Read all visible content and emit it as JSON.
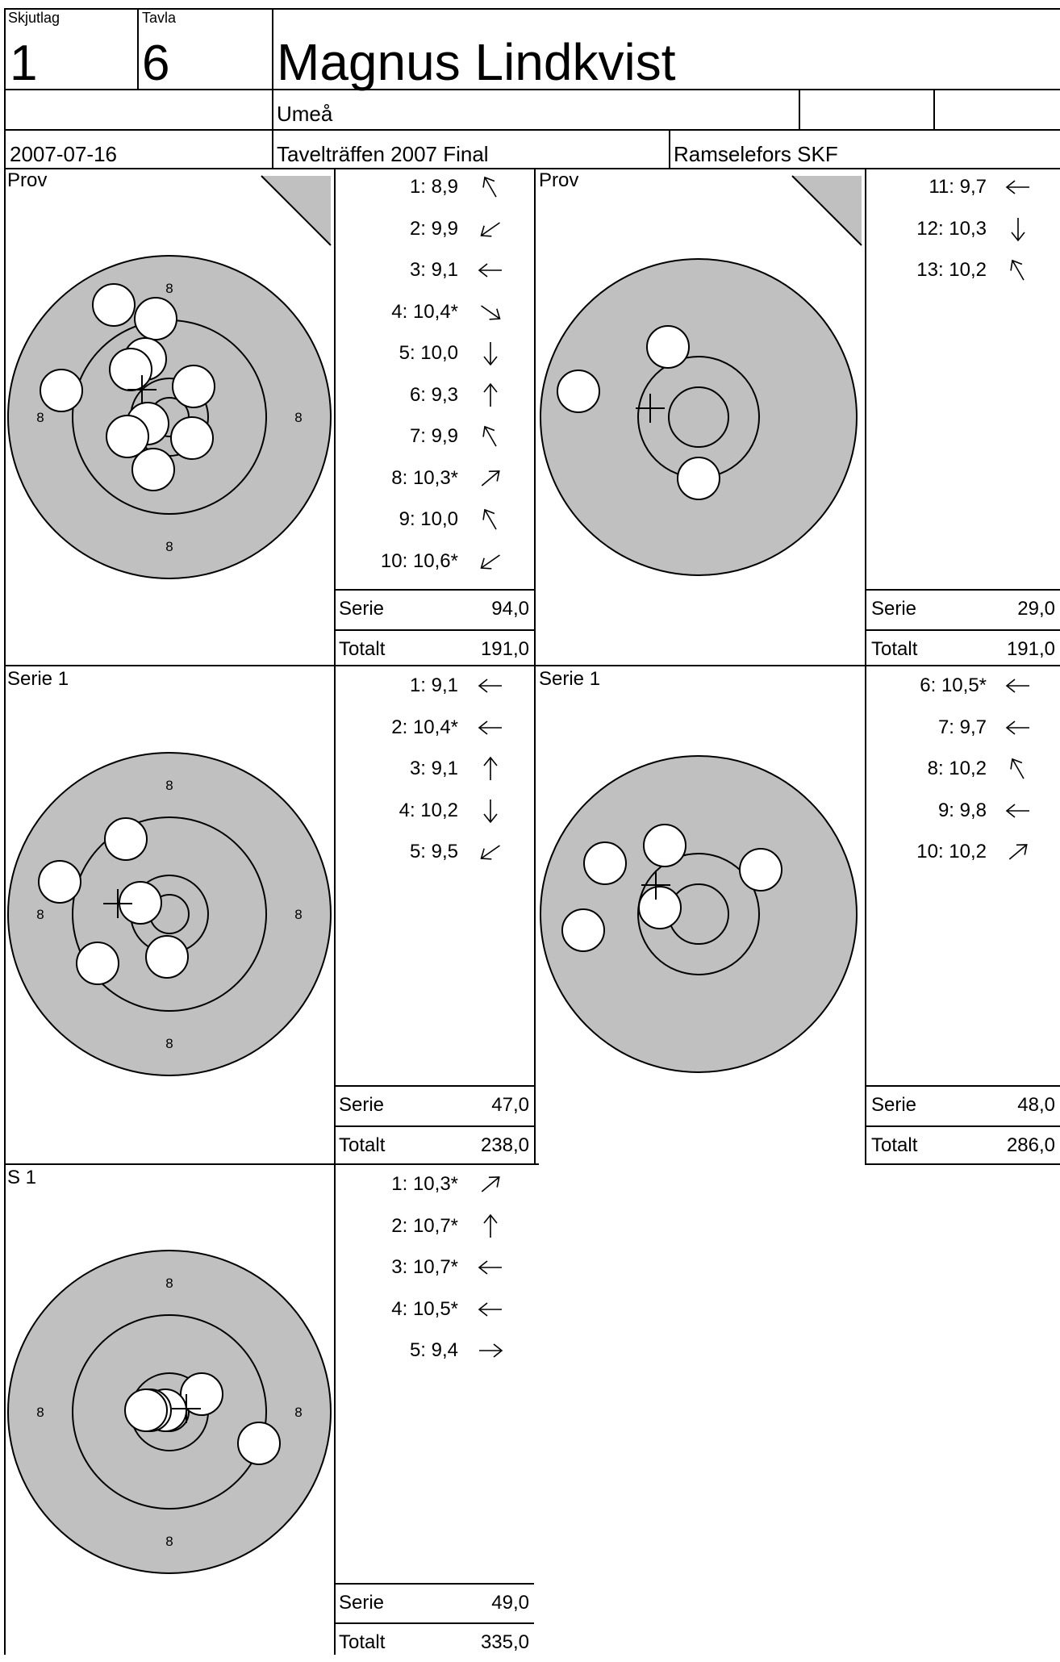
{
  "header": {
    "skjutlag_label": "Skjutlag",
    "skjutlag": "1",
    "tavla_label": "Tavla",
    "tavla": "6",
    "name": "Magnus Lindkvist",
    "city": "Umeå",
    "date": "2007-07-16",
    "competition": "Tavelträffen 2007 Final",
    "club": "Ramselefors SKF"
  },
  "colors": {
    "target_fill": "#c0c0c0",
    "ink": "#000000",
    "paper": "#ffffff"
  },
  "ring_label": "8",
  "summary_labels": {
    "serie": "Serie",
    "totalt": "Totalt"
  },
  "panels": [
    {
      "title": "Prov",
      "corner_flag": true,
      "shots": [
        {
          "text": "1:  8,9",
          "arrow": "up-left"
        },
        {
          "text": "2:  9,9",
          "arrow": "down-left"
        },
        {
          "text": "3:  9,1",
          "arrow": "left"
        },
        {
          "text": "4: 10,4*",
          "arrow": "down-right"
        },
        {
          "text": "5: 10,0",
          "arrow": "down"
        },
        {
          "text": "6:  9,3",
          "arrow": "up"
        },
        {
          "text": "7:  9,9",
          "arrow": "up-left"
        },
        {
          "text": "8: 10,3*",
          "arrow": "up-right"
        },
        {
          "text": "9: 10,0",
          "arrow": "up-left"
        },
        {
          "text": "10: 10,6*",
          "arrow": "down-left"
        }
      ],
      "serie": "94,0",
      "totalt": "191,0"
    },
    {
      "title": "Prov",
      "corner_flag": true,
      "shots": [
        {
          "text": "11:  9,7",
          "arrow": "left"
        },
        {
          "text": "12: 10,3",
          "arrow": "down"
        },
        {
          "text": "13: 10,2",
          "arrow": "up-left"
        }
      ],
      "serie": "29,0",
      "totalt": "191,0"
    },
    {
      "title": "Serie 1",
      "corner_flag": false,
      "shots": [
        {
          "text": "1:  9,1",
          "arrow": "left"
        },
        {
          "text": "2: 10,4*",
          "arrow": "left"
        },
        {
          "text": "3:  9,1",
          "arrow": "up"
        },
        {
          "text": "4: 10,2",
          "arrow": "down"
        },
        {
          "text": "5:  9,5",
          "arrow": "down-left"
        }
      ],
      "serie": "47,0",
      "totalt": "238,0"
    },
    {
      "title": "Serie 1",
      "corner_flag": false,
      "shots": [
        {
          "text": "6: 10,5*",
          "arrow": "left"
        },
        {
          "text": "7:  9,7",
          "arrow": "left"
        },
        {
          "text": "8: 10,2",
          "arrow": "up-left"
        },
        {
          "text": "9:  9,8",
          "arrow": "left"
        },
        {
          "text": "10: 10,2",
          "arrow": "up-right"
        }
      ],
      "serie": "48,0",
      "totalt": "286,0"
    },
    {
      "title": "S 1",
      "corner_flag": false,
      "shots": [
        {
          "text": "1: 10,3*",
          "arrow": "up-right"
        },
        {
          "text": "2: 10,7*",
          "arrow": "up"
        },
        {
          "text": "3: 10,7*",
          "arrow": "left"
        },
        {
          "text": "4: 10,5*",
          "arrow": "left"
        },
        {
          "text": "5:  9,4",
          "arrow": "right"
        }
      ],
      "serie": "49,0",
      "totalt": "335,0"
    }
  ]
}
